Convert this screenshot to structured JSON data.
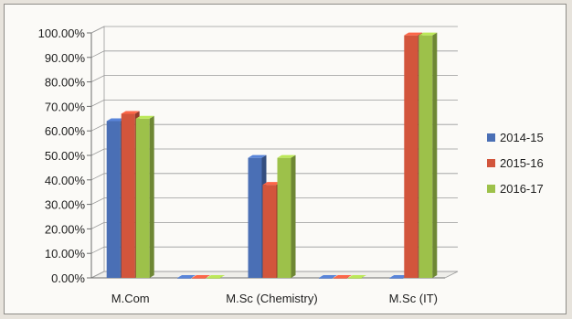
{
  "chart_data": {
    "type": "bar",
    "categories": [
      "M.Com",
      "",
      "M.Sc (Chemistry)",
      "",
      "M.Sc (IT)"
    ],
    "series": [
      {
        "name": "2014-15",
        "values": [
          64,
          0,
          49,
          0,
          0
        ]
      },
      {
        "name": "2015-16",
        "values": [
          67,
          0,
          38,
          0,
          99
        ]
      },
      {
        "name": "2016-17",
        "values": [
          65,
          0,
          49,
          0,
          99
        ]
      }
    ],
    "yticks": [
      "0.00%",
      "10.00%",
      "20.00%",
      "30.00%",
      "40.00%",
      "50.00%",
      "60.00%",
      "70.00%",
      "80.00%",
      "90.00%",
      "100.00%"
    ],
    "ylim": [
      0,
      100
    ],
    "grid": true,
    "legend_position": "right",
    "colors": {
      "2014-15": "#4a6fb5",
      "2015-16": "#d2553c",
      "2016-17": "#9dc14a"
    }
  }
}
